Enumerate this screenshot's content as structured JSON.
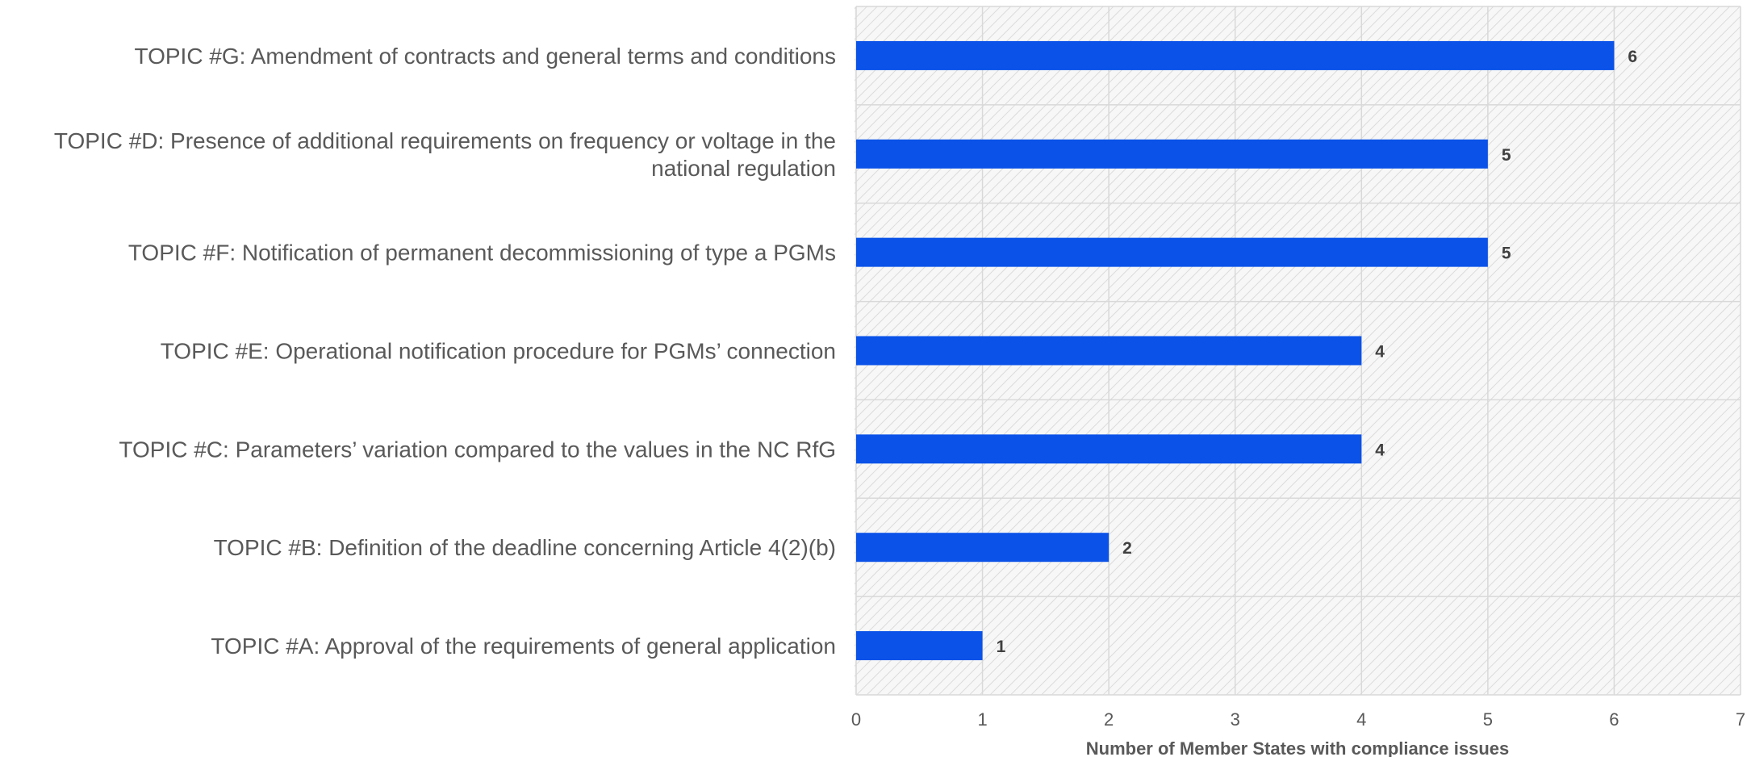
{
  "chart_data": {
    "type": "bar",
    "orientation": "horizontal",
    "categories": [
      "TOPIC #G: Amendment of contracts and general terms and conditions",
      "TOPIC #D: Presence of additional requirements on frequency or voltage in the national regulation",
      "TOPIC #F: Notification of permanent decommissioning of type a PGMs",
      "TOPIC #E: Operational notification procedure for PGMs’ connection",
      "TOPIC #C: Parameters’ variation compared to the values in the NC RfG",
      "TOPIC #B: Definition of the deadline concerning Article 4(2)(b)",
      "TOPIC #A: Approval of the requirements of general application"
    ],
    "category_lines": [
      [
        "TOPIC #G: Amendment of contracts and general terms and conditions"
      ],
      [
        "TOPIC #D: Presence of additional requirements on frequency or voltage in the",
        "national regulation"
      ],
      [
        "TOPIC #F: Notification of permanent decommissioning of type a PGMs"
      ],
      [
        "TOPIC #E: Operational notification procedure for PGMs’ connection"
      ],
      [
        "TOPIC #C: Parameters’ variation compared to the values in the NC RfG"
      ],
      [
        "TOPIC #B: Definition of the deadline concerning Article 4(2)(b)"
      ],
      [
        "TOPIC #A: Approval of the requirements of general application"
      ]
    ],
    "values": [
      6,
      5,
      5,
      4,
      4,
      2,
      1
    ],
    "data_labels": [
      "6",
      "5",
      "5",
      "4",
      "4",
      "2",
      "1"
    ],
    "title": "",
    "xlabel": "Number of Member States with compliance issues",
    "ylabel": "",
    "xlim": [
      0,
      7
    ],
    "x_ticks": [
      "0",
      "1",
      "2",
      "3",
      "4",
      "5",
      "6",
      "7"
    ],
    "grid": true,
    "legend": "none",
    "colors": {
      "bar": "#0a52e8",
      "grid": "#d9d9d9",
      "hatch": "#d4d4d4",
      "plot_background": "#f7f7f7",
      "text": "#595959",
      "value_text": "#404040"
    }
  }
}
